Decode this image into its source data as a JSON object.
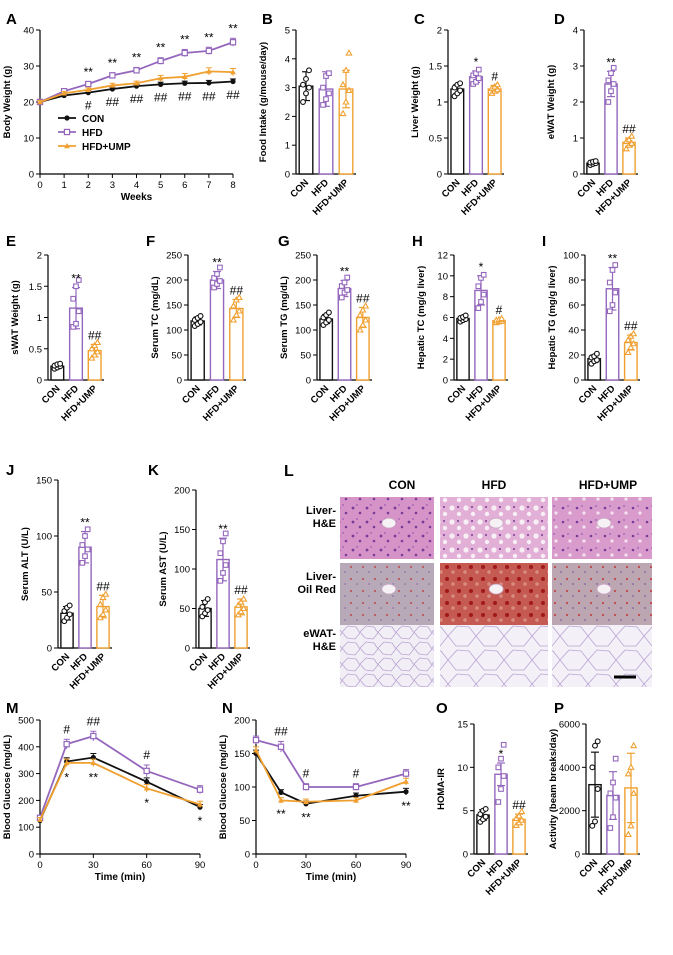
{
  "colors": {
    "con": "#111111",
    "hfd": "#9467bd",
    "ump": "#f0a030",
    "hfd_fill": "#ffffff"
  },
  "groups": [
    "CON",
    "HFD",
    "HFD+UMP"
  ],
  "chart_data": [
    {
      "id": "A",
      "type": "line",
      "ylabel": "Body Weight (g)",
      "xlabel": "Weeks",
      "x": [
        0,
        1,
        2,
        3,
        4,
        5,
        6,
        7,
        8
      ],
      "ylim": [
        0,
        40
      ],
      "yticks": [
        0,
        10,
        20,
        30,
        40
      ],
      "xticks": [
        0,
        1,
        2,
        3,
        4,
        5,
        6,
        7,
        8
      ],
      "legend": [
        "CON",
        "HFD",
        "HFD+UMP"
      ],
      "series": [
        {
          "name": "CON",
          "values": [
            20,
            21.8,
            22.6,
            23.6,
            24.4,
            24.9,
            25.2,
            25.3,
            25.7
          ],
          "err": [
            0.4,
            0.4,
            0.5,
            0.5,
            0.5,
            0.6,
            0.6,
            0.7,
            0.7
          ]
        },
        {
          "name": "HFD",
          "values": [
            20,
            23,
            25,
            27.4,
            28.8,
            31.4,
            33.6,
            34.2,
            36.6
          ],
          "err": [
            0.4,
            0.5,
            0.6,
            0.7,
            0.8,
            0.9,
            1.0,
            1.0,
            1.1
          ]
        },
        {
          "name": "HFD+UMP",
          "values": [
            20,
            22.4,
            23.4,
            24.6,
            25.2,
            26.6,
            27,
            28.5,
            28.3
          ],
          "err": [
            0.4,
            0.5,
            0.5,
            0.6,
            0.6,
            0.8,
            0.9,
            1.0,
            1.0
          ]
        }
      ],
      "annotations_top": [
        "",
        "",
        "**",
        "**",
        "**",
        "**",
        "**",
        "**",
        "**"
      ],
      "annotations_bottom": [
        "",
        "",
        "#",
        "##",
        "##",
        "##",
        "##",
        "##",
        "##"
      ]
    },
    {
      "id": "B",
      "type": "bar",
      "ylabel": "Food Intake (g/mouse/day)",
      "ylim": [
        0,
        5
      ],
      "yticks": [
        0,
        1,
        2,
        3,
        4,
        5
      ],
      "values": [
        3.05,
        2.95,
        2.95
      ],
      "err": [
        0.5,
        0.6,
        0.65
      ],
      "sig": [
        "",
        "",
        ""
      ],
      "points": [
        [
          2.5,
          2.8,
          3.0,
          3.1,
          3.3,
          3.6
        ],
        [
          2.4,
          2.6,
          2.8,
          3.0,
          3.4,
          3.5
        ],
        [
          2.1,
          2.5,
          2.9,
          3.1,
          3.6,
          4.2
        ]
      ]
    },
    {
      "id": "C",
      "type": "bar",
      "ylabel": "Liver Weight (g)",
      "ylim": [
        0,
        2.0
      ],
      "yticks": [
        0,
        0.5,
        1.0,
        1.5,
        2.0
      ],
      "values": [
        1.18,
        1.35,
        1.18
      ],
      "err": [
        0.06,
        0.08,
        0.05
      ],
      "sig": [
        "",
        "*",
        "#"
      ],
      "points": [
        [
          1.08,
          1.12,
          1.16,
          1.2,
          1.24,
          1.26
        ],
        [
          1.25,
          1.28,
          1.33,
          1.37,
          1.4,
          1.45
        ],
        [
          1.12,
          1.15,
          1.17,
          1.19,
          1.21,
          1.24
        ]
      ]
    },
    {
      "id": "D",
      "type": "bar",
      "ylabel": "eWAT Weight (g)",
      "ylim": [
        0,
        4
      ],
      "yticks": [
        0,
        1,
        2,
        3,
        4
      ],
      "values": [
        0.3,
        2.5,
        0.88
      ],
      "err": [
        0.05,
        0.35,
        0.12
      ],
      "sig": [
        "",
        "**",
        "##"
      ],
      "points": [
        [
          0.25,
          0.28,
          0.3,
          0.32,
          0.34,
          0.36
        ],
        [
          2.0,
          2.3,
          2.5,
          2.6,
          2.8,
          2.95
        ],
        [
          0.7,
          0.8,
          0.85,
          0.9,
          0.95,
          1.05
        ]
      ]
    },
    {
      "id": "E",
      "type": "bar",
      "ylabel": "sWAT Weight (g)",
      "ylim": [
        0,
        2.0
      ],
      "yticks": [
        0,
        0.5,
        1.0,
        1.5,
        2.0
      ],
      "values": [
        0.22,
        1.15,
        0.47
      ],
      "err": [
        0.03,
        0.33,
        0.1
      ],
      "sig": [
        "",
        "**",
        "##"
      ],
      "points": [
        [
          0.18,
          0.2,
          0.22,
          0.23,
          0.25,
          0.26
        ],
        [
          0.85,
          0.9,
          1.1,
          1.3,
          1.5,
          1.6
        ],
        [
          0.35,
          0.4,
          0.45,
          0.5,
          0.55,
          0.6
        ]
      ]
    },
    {
      "id": "F",
      "type": "bar",
      "ylabel": "Serum TC (mg/dL)",
      "ylim": [
        0,
        250
      ],
      "yticks": [
        0,
        50,
        100,
        150,
        200,
        250
      ],
      "values": [
        118,
        200,
        143
      ],
      "err": [
        8,
        17,
        18
      ],
      "sig": [
        "",
        "**",
        "##"
      ],
      "points": [
        [
          108,
          112,
          116,
          120,
          124,
          128
        ],
        [
          185,
          192,
          198,
          204,
          212,
          225
        ],
        [
          120,
          130,
          138,
          148,
          160,
          165
        ]
      ]
    },
    {
      "id": "G",
      "type": "bar",
      "ylabel": "Serum TG (mg/dL)",
      "ylim": [
        0,
        250
      ],
      "yticks": [
        0,
        50,
        100,
        150,
        200,
        250
      ],
      "values": [
        122,
        183,
        125
      ],
      "err": [
        9,
        16,
        20
      ],
      "sig": [
        "",
        "**",
        "##"
      ],
      "points": [
        [
          110,
          115,
          120,
          125,
          130,
          135
        ],
        [
          165,
          175,
          180,
          188,
          195,
          205
        ],
        [
          100,
          110,
          120,
          130,
          140,
          148
        ]
      ]
    },
    {
      "id": "H",
      "type": "bar",
      "ylabel": "Hepatic TC (mg/g liver)",
      "ylim": [
        0,
        12
      ],
      "yticks": [
        0,
        2,
        4,
        6,
        8,
        10,
        12
      ],
      "values": [
        5.9,
        8.6,
        5.7
      ],
      "err": [
        0.25,
        1.4,
        0.15
      ],
      "sig": [
        "",
        "*",
        "#"
      ],
      "points": [
        [
          5.6,
          5.75,
          5.85,
          5.95,
          6.05,
          6.2
        ],
        [
          6.9,
          7.5,
          8.2,
          9.0,
          9.8,
          10.1
        ],
        [
          5.5,
          5.6,
          5.65,
          5.75,
          5.8,
          5.9
        ]
      ]
    },
    {
      "id": "I",
      "type": "bar",
      "ylabel": "Hepatic TG (mg/g liver)",
      "ylim": [
        0,
        100
      ],
      "yticks": [
        0,
        20,
        40,
        60,
        80,
        100
      ],
      "values": [
        17,
        73,
        30
      ],
      "err": [
        3,
        17,
        6
      ],
      "sig": [
        "",
        "**",
        "##"
      ],
      "points": [
        [
          13,
          15,
          16,
          18,
          19,
          21
        ],
        [
          55,
          60,
          70,
          78,
          88,
          92
        ],
        [
          22,
          26,
          29,
          32,
          35,
          37
        ]
      ]
    },
    {
      "id": "J",
      "type": "bar",
      "ylabel": "Serum ALT (U/L)",
      "ylim": [
        0,
        150
      ],
      "yticks": [
        0,
        50,
        100,
        150
      ],
      "values": [
        31,
        90,
        37
      ],
      "err": [
        6,
        14,
        10
      ],
      "sig": [
        "",
        "**",
        "##"
      ],
      "points": [
        [
          24,
          27,
          30,
          33,
          36,
          38
        ],
        [
          76,
          82,
          88,
          92,
          100,
          106
        ],
        [
          27,
          30,
          34,
          39,
          45,
          48
        ]
      ]
    },
    {
      "id": "K",
      "type": "bar",
      "ylabel": "Serum AST (U/L)",
      "ylim": [
        0,
        200
      ],
      "yticks": [
        0,
        50,
        100,
        150,
        200
      ],
      "values": [
        50,
        112,
        52
      ],
      "err": [
        10,
        27,
        10
      ],
      "sig": [
        "",
        "**",
        "##"
      ],
      "points": [
        [
          40,
          44,
          48,
          52,
          58,
          62
        ],
        [
          85,
          95,
          105,
          120,
          135,
          145
        ],
        [
          42,
          46,
          50,
          54,
          58,
          62
        ]
      ]
    },
    {
      "id": "M",
      "type": "line",
      "ylabel": "Blood Glucose (mg/dL)",
      "xlabel": "Time (min)",
      "x": [
        0,
        15,
        30,
        60,
        90
      ],
      "ylim": [
        0,
        500
      ],
      "yticks": [
        0,
        100,
        200,
        300,
        400,
        500
      ],
      "xticks": [
        0,
        30,
        60,
        90
      ],
      "series": [
        {
          "name": "CON",
          "values": [
            125,
            345,
            360,
            270,
            175
          ],
          "err": [
            8,
            14,
            15,
            14,
            10
          ]
        },
        {
          "name": "HFD",
          "values": [
            135,
            410,
            440,
            310,
            240
          ],
          "err": [
            10,
            18,
            18,
            22,
            15
          ]
        },
        {
          "name": "HFD+UMP",
          "values": [
            128,
            340,
            340,
            245,
            185
          ],
          "err": [
            8,
            14,
            14,
            14,
            12
          ]
        }
      ],
      "annotations_top": [
        "",
        "#",
        "##",
        "#",
        ""
      ],
      "annotations_bottom": [
        "",
        "*",
        "**",
        "*",
        "*"
      ]
    },
    {
      "id": "N",
      "type": "line",
      "ylabel": "Blood Glucose (mg/dL)",
      "xlabel": "Time (min)",
      "x": [
        0,
        15,
        30,
        60,
        90
      ],
      "ylim": [
        0,
        200
      ],
      "yticks": [
        0,
        50,
        100,
        150,
        200
      ],
      "xticks": [
        0,
        30,
        60,
        90
      ],
      "series": [
        {
          "name": "CON",
          "values": [
            150,
            92,
            75,
            87,
            93
          ],
          "err": [
            5,
            4,
            4,
            4,
            5
          ]
        },
        {
          "name": "HFD",
          "values": [
            170,
            160,
            100,
            100,
            120
          ],
          "err": [
            6,
            8,
            5,
            5,
            6
          ]
        },
        {
          "name": "HFD+UMP",
          "values": [
            155,
            80,
            78,
            80,
            108
          ],
          "err": [
            5,
            4,
            4,
            4,
            5
          ]
        }
      ],
      "annotations_top": [
        "",
        "##",
        "#",
        "#",
        ""
      ],
      "annotations_bottom": [
        "",
        "**",
        "**",
        "",
        "**"
      ]
    },
    {
      "id": "O",
      "type": "bar",
      "ylabel": "HOMA-IR",
      "ylim": [
        0,
        15
      ],
      "yticks": [
        0,
        5,
        10,
        15
      ],
      "values": [
        4.5,
        9.2,
        4.0
      ],
      "err": [
        0.6,
        1.3,
        0.6
      ],
      "sig": [
        "",
        "*",
        "##"
      ],
      "points": [
        [
          3.7,
          4.0,
          4.3,
          4.6,
          5.0,
          5.2
        ],
        [
          6.0,
          7.5,
          9.0,
          10.0,
          11.0,
          12.6
        ],
        [
          3.3,
          3.6,
          3.9,
          4.1,
          4.4,
          4.9
        ]
      ]
    },
    {
      "id": "P",
      "type": "bar",
      "ylabel": "Activity (beam breaks/day)",
      "ylim": [
        0,
        6000
      ],
      "yticks": [
        0,
        2000,
        4000,
        6000
      ],
      "values": [
        3200,
        2700,
        3050
      ],
      "err": [
        1500,
        1100,
        1600
      ],
      "sig": [
        "",
        "",
        ""
      ],
      "points": [
        [
          1300,
          1500,
          3000,
          4000,
          5000,
          5200
        ],
        [
          1200,
          1700,
          2600,
          2800,
          3300,
          4400
        ],
        [
          900,
          1300,
          2800,
          3700,
          4000,
          5000
        ]
      ]
    }
  ],
  "histology": {
    "label": "L",
    "columns": [
      "CON",
      "HFD",
      "HFD+UMP"
    ],
    "rows": [
      {
        "name1": "Liver-",
        "name2": "H&E",
        "tint": "he"
      },
      {
        "name1": "Liver-",
        "name2": "Oil Red",
        "tint": "oil"
      },
      {
        "name1": "eWAT-",
        "name2": "H&E",
        "tint": "wat"
      }
    ]
  }
}
